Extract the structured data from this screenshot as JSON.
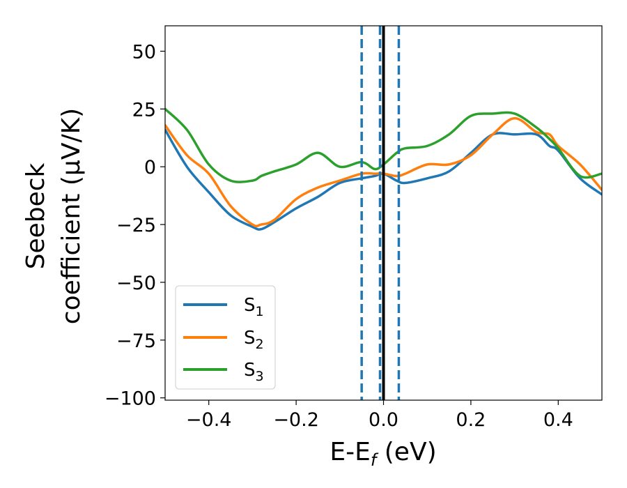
{
  "chart_data": {
    "type": "line",
    "xlabel": "E-E_f (eV)",
    "xlabel_parts": {
      "main": "E-E",
      "sub": "f",
      "tail": " (eV)"
    },
    "ylabel_line1": "Seebeck",
    "ylabel_line2": "coefficient  (μV/K)",
    "xlim": [
      -0.5,
      0.5
    ],
    "ylim": [
      -101,
      61
    ],
    "xticks": [
      -0.4,
      -0.2,
      0.0,
      0.2,
      0.4
    ],
    "xtick_labels": [
      "−0.4",
      "−0.2",
      "0.0",
      "0.2",
      "0.4"
    ],
    "yticks": [
      50,
      25,
      0,
      -25,
      -50,
      -75,
      -100
    ],
    "ytick_labels": [
      "50",
      "25",
      "0",
      "−25",
      "−50",
      "−75",
      "−100"
    ],
    "grid": false,
    "legend_position": "lower-left",
    "vertical_lines": [
      {
        "x": -0.05,
        "style": "dashed",
        "color": "#1f77b4"
      },
      {
        "x": -0.008,
        "style": "dashed",
        "color": "#1f77b4"
      },
      {
        "x": 0.035,
        "style": "dashed",
        "color": "#1f77b4"
      },
      {
        "x": 0.0,
        "style": "solid",
        "color": "#000000"
      }
    ],
    "series": [
      {
        "name": "S1",
        "label_main": "S",
        "label_sub": "1",
        "color": "#1f77b4",
        "x": [
          -0.5,
          -0.45,
          -0.4,
          -0.35,
          -0.3,
          -0.28,
          -0.25,
          -0.2,
          -0.15,
          -0.1,
          -0.05,
          -0.02,
          0.0,
          0.03,
          0.05,
          0.1,
          0.15,
          0.2,
          0.25,
          0.3,
          0.35,
          0.38,
          0.4,
          0.45,
          0.5
        ],
        "values": [
          16,
          0,
          -11,
          -21,
          -26,
          -27,
          -24,
          -18,
          -13,
          -7,
          -5,
          -4,
          -3,
          -6,
          -7,
          -5,
          -2,
          6,
          14,
          14,
          14,
          9,
          7,
          -5,
          -12
        ]
      },
      {
        "name": "S2",
        "label_main": "S",
        "label_sub": "2",
        "color": "#ff7f0e",
        "x": [
          -0.5,
          -0.45,
          -0.4,
          -0.35,
          -0.3,
          -0.28,
          -0.25,
          -0.2,
          -0.15,
          -0.1,
          -0.05,
          -0.02,
          0.0,
          0.03,
          0.05,
          0.1,
          0.15,
          0.2,
          0.25,
          0.3,
          0.35,
          0.38,
          0.4,
          0.45,
          0.5
        ],
        "values": [
          18,
          5,
          -3,
          -17,
          -25,
          -25,
          -23,
          -14,
          -9,
          -6,
          -3,
          -3,
          -3,
          -4,
          -3,
          1,
          1,
          5,
          14,
          21,
          15,
          14,
          9,
          1,
          -10
        ]
      },
      {
        "name": "S3",
        "label_main": "S",
        "label_sub": "3",
        "color": "#2ca02c",
        "x": [
          -0.5,
          -0.45,
          -0.4,
          -0.35,
          -0.3,
          -0.28,
          -0.25,
          -0.2,
          -0.15,
          -0.1,
          -0.05,
          -0.02,
          0.0,
          0.03,
          0.05,
          0.1,
          0.15,
          0.2,
          0.25,
          0.3,
          0.35,
          0.38,
          0.4,
          0.45,
          0.5
        ],
        "values": [
          25,
          16,
          1,
          -6,
          -6,
          -4,
          -2,
          1,
          6,
          0,
          2,
          -1,
          1,
          6,
          8,
          9,
          14,
          22,
          23,
          23,
          17,
          12,
          8,
          -4,
          -3
        ]
      }
    ]
  }
}
